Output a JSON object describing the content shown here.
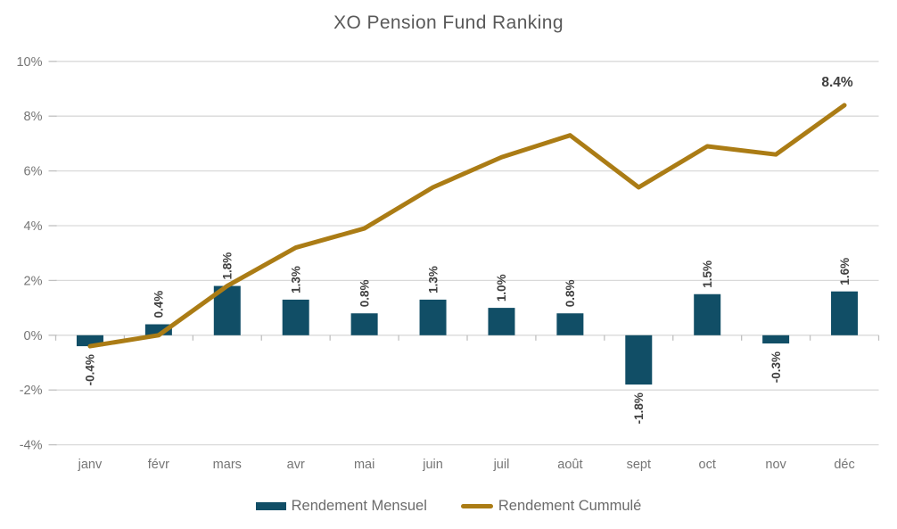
{
  "title": "XO Pension Fund Ranking",
  "colors": {
    "bar": "#114E66",
    "line": "#AB7C15",
    "grid": "#D9D9D9",
    "tick": "#C0C0C0",
    "axis_text": "#757575",
    "title_text": "#595959",
    "legend_text": "#6B6B6B",
    "data_label": "#3F3F3F"
  },
  "chart_data": {
    "type": "combo",
    "title": "XO Pension Fund Ranking",
    "categories": [
      "janv",
      "févr",
      "mars",
      "avr",
      "mai",
      "juin",
      "juil",
      "août",
      "sept",
      "oct",
      "nov",
      "déc"
    ],
    "series": [
      {
        "name": "Rendement Mensuel",
        "type": "bar",
        "color": "#114E66",
        "values": [
          -0.4,
          0.4,
          1.8,
          1.3,
          0.8,
          1.3,
          1.0,
          0.8,
          -1.8,
          1.5,
          -0.3,
          1.6
        ],
        "labels": [
          "-0.4%",
          "0.4%",
          "1.8%",
          "1.3%",
          "0.8%",
          "1.3%",
          "1.0%",
          "0.8%",
          "-1.8%",
          "1.5%",
          "-0.3%",
          "1.6%"
        ]
      },
      {
        "name": "Rendement Cummulé",
        "type": "line",
        "color": "#AB7C15",
        "values": [
          -0.4,
          0.0,
          1.8,
          3.2,
          3.9,
          5.4,
          6.5,
          7.3,
          5.4,
          6.9,
          6.6,
          8.4
        ]
      }
    ],
    "annotation": {
      "text": "8.4%",
      "value": 8.4,
      "category": "déc",
      "series": "Rendement Cummulé"
    },
    "ylim": [
      -4,
      10
    ],
    "yticks": [
      {
        "value": 10,
        "label": "10%"
      },
      {
        "value": 8,
        "label": "8%"
      },
      {
        "value": 6,
        "label": "6%"
      },
      {
        "value": 4,
        "label": "4%"
      },
      {
        "value": 2,
        "label": "2%"
      },
      {
        "value": 0,
        "label": "0%"
      },
      {
        "value": -2,
        "label": "-2%"
      },
      {
        "value": -4,
        "label": "-4%"
      }
    ],
    "grid": true,
    "legend_position": "bottom"
  }
}
